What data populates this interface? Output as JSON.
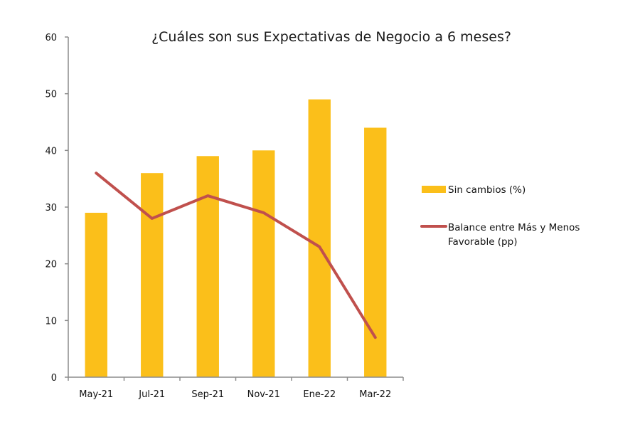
{
  "chart_data": {
    "type": "bar",
    "title": "¿Cuáles son sus Expectativas de Negocio a 6 meses?",
    "xlabel": "",
    "ylabel": "",
    "categories": [
      "May-21",
      "Jul-21",
      "Sep-21",
      "Nov-21",
      "Ene-22",
      "Mar-22"
    ],
    "ylim": [
      0,
      60
    ],
    "yticks": [
      0,
      10,
      20,
      30,
      40,
      50,
      60
    ],
    "ytick_labels": [
      "0",
      "10",
      "20",
      "30",
      "40",
      "50",
      "60"
    ],
    "grid": false,
    "legend_position": "right",
    "series": [
      {
        "name": "Sin cambios (%)",
        "type": "bar",
        "color": "#FBBF1A",
        "values": [
          29,
          36,
          39,
          40,
          49,
          44
        ]
      },
      {
        "name": "Balance entre Más y Menos Favorable (pp)",
        "legend_lines": [
          "Balance entre Más y Menos",
          "Favorable (pp)"
        ],
        "type": "line",
        "color": "#C0504D",
        "values": [
          36,
          28,
          32,
          29,
          23,
          7
        ]
      }
    ]
  }
}
